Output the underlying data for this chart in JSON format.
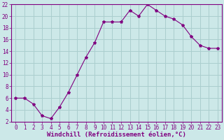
{
  "x": [
    0,
    1,
    2,
    3,
    4,
    5,
    6,
    7,
    8,
    9,
    10,
    11,
    12,
    13,
    14,
    15,
    16,
    17,
    18,
    19,
    20,
    21,
    22,
    23
  ],
  "y": [
    6,
    6,
    5,
    3,
    2.5,
    4.5,
    7,
    10,
    13,
    15.5,
    19,
    19,
    19,
    21,
    20,
    22,
    21,
    20,
    19.5,
    18.5,
    16.5,
    15,
    14.5,
    14.5
  ],
  "line_color": "#800080",
  "marker": "*",
  "marker_size": 3,
  "bg_color": "#cce8e8",
  "grid_color": "#aacece",
  "xlabel": "Windchill (Refroidissement éolien,°C)",
  "xlabel_color": "#800080",
  "tick_color": "#800080",
  "ylim": [
    2,
    22
  ],
  "xlim": [
    -0.5,
    23.5
  ],
  "yticks": [
    2,
    4,
    6,
    8,
    10,
    12,
    14,
    16,
    18,
    20,
    22
  ],
  "xticks": [
    0,
    1,
    2,
    3,
    4,
    5,
    6,
    7,
    8,
    9,
    10,
    11,
    12,
    13,
    14,
    15,
    16,
    17,
    18,
    19,
    20,
    21,
    22,
    23
  ],
  "spine_color": "#800080",
  "xlabel_fontsize": 6.5,
  "tick_fontsize": 5.5
}
